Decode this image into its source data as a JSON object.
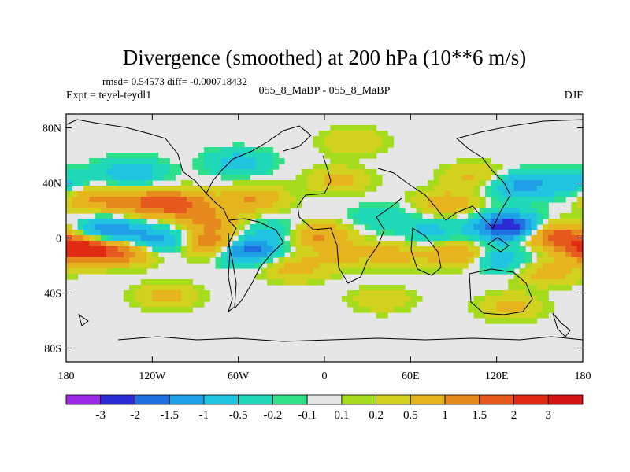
{
  "chart_data": {
    "type": "heatmap",
    "title": "Divergence (smoothed) at 200 hPa (10**6 m/s)",
    "stats_text": "rmsd= 0.54573  diff= -0.000718432",
    "experiment_label": "Expt = teyel-teydl1",
    "center_label": "055_8_MaBP - 055_8_MaBP",
    "season": "DJF",
    "x_range": [
      -180,
      180
    ],
    "y_range": [
      -90,
      90
    ],
    "x_ticks": [
      {
        "value": -180,
        "label": "180"
      },
      {
        "value": -120,
        "label": "120W"
      },
      {
        "value": -60,
        "label": "60W"
      },
      {
        "value": 0,
        "label": "0"
      },
      {
        "value": 60,
        "label": "60E"
      },
      {
        "value": 120,
        "label": "120E"
      },
      {
        "value": 180,
        "label": "180"
      }
    ],
    "y_ticks": [
      {
        "value": 80,
        "label": "80N"
      },
      {
        "value": 40,
        "label": "40N"
      },
      {
        "value": 0,
        "label": "0"
      },
      {
        "value": -40,
        "label": "40S"
      },
      {
        "value": -80,
        "label": "80S"
      }
    ],
    "colorbar": {
      "levels": [
        "-3",
        "-2",
        "-1.5",
        "-1",
        "-0.5",
        "-0.2",
        "-0.1",
        "0.1",
        "0.2",
        "0.5",
        "1",
        "1.5",
        "2",
        "3"
      ],
      "colors": [
        "#9a2ae6",
        "#2c2cd6",
        "#1f6fe0",
        "#1fa0e6",
        "#21c4e0",
        "#1fd8b8",
        "#2ee08a",
        "#e6e6e6",
        "#a6dc1e",
        "#d2d21e",
        "#e6b41e",
        "#e68a1e",
        "#e6581e",
        "#e02a14",
        "#d21414"
      ]
    },
    "field_features": [
      {
        "lon": -125,
        "lat": 25,
        "value": 1.2
      },
      {
        "lon": -100,
        "lat": 25,
        "value": 1.4
      },
      {
        "lon": -80,
        "lat": 12,
        "value": 1.0
      },
      {
        "lon": -50,
        "lat": 28,
        "value": 1.0
      },
      {
        "lon": -160,
        "lat": 28,
        "value": 1.0
      },
      {
        "lon": -150,
        "lat": 5,
        "value": -1.6
      },
      {
        "lon": -115,
        "lat": -2,
        "value": -1.3
      },
      {
        "lon": -170,
        "lat": -8,
        "value": 2.6
      },
      {
        "lon": -140,
        "lat": -10,
        "value": 1.4
      },
      {
        "lon": -75,
        "lat": -5,
        "value": 2.2
      },
      {
        "lon": -58,
        "lat": -8,
        "value": -2.5
      },
      {
        "lon": -135,
        "lat": 48,
        "value": -0.9
      },
      {
        "lon": -60,
        "lat": 55,
        "value": -0.7
      },
      {
        "lon": -35,
        "lat": 5,
        "value": -0.6
      },
      {
        "lon": -20,
        "lat": -22,
        "value": 0.7
      },
      {
        "lon": -5,
        "lat": 2,
        "value": 1.1
      },
      {
        "lon": 10,
        "lat": 42,
        "value": 0.6
      },
      {
        "lon": 15,
        "lat": -12,
        "value": 0.5
      },
      {
        "lon": 40,
        "lat": 15,
        "value": -0.5
      },
      {
        "lon": 50,
        "lat": -12,
        "value": 0.6
      },
      {
        "lon": 85,
        "lat": 25,
        "value": 0.8
      },
      {
        "lon": 95,
        "lat": -12,
        "value": 1.1
      },
      {
        "lon": 75,
        "lat": 5,
        "value": -0.6
      },
      {
        "lon": 128,
        "lat": 8,
        "value": -2.6
      },
      {
        "lon": 120,
        "lat": -15,
        "value": -1.0
      },
      {
        "lon": 160,
        "lat": 2,
        "value": 1.8
      },
      {
        "lon": 155,
        "lat": -25,
        "value": 0.7
      },
      {
        "lon": 135,
        "lat": 38,
        "value": -1.1
      },
      {
        "lon": 170,
        "lat": 40,
        "value": -0.8
      },
      {
        "lon": 105,
        "lat": 45,
        "value": 0.6
      },
      {
        "lon": 20,
        "lat": 70,
        "value": 0.5
      },
      {
        "lon": -110,
        "lat": -42,
        "value": 0.6
      },
      {
        "lon": 130,
        "lat": -50,
        "value": 0.6
      },
      {
        "lon": 40,
        "lat": -45,
        "value": 0.4
      }
    ]
  }
}
